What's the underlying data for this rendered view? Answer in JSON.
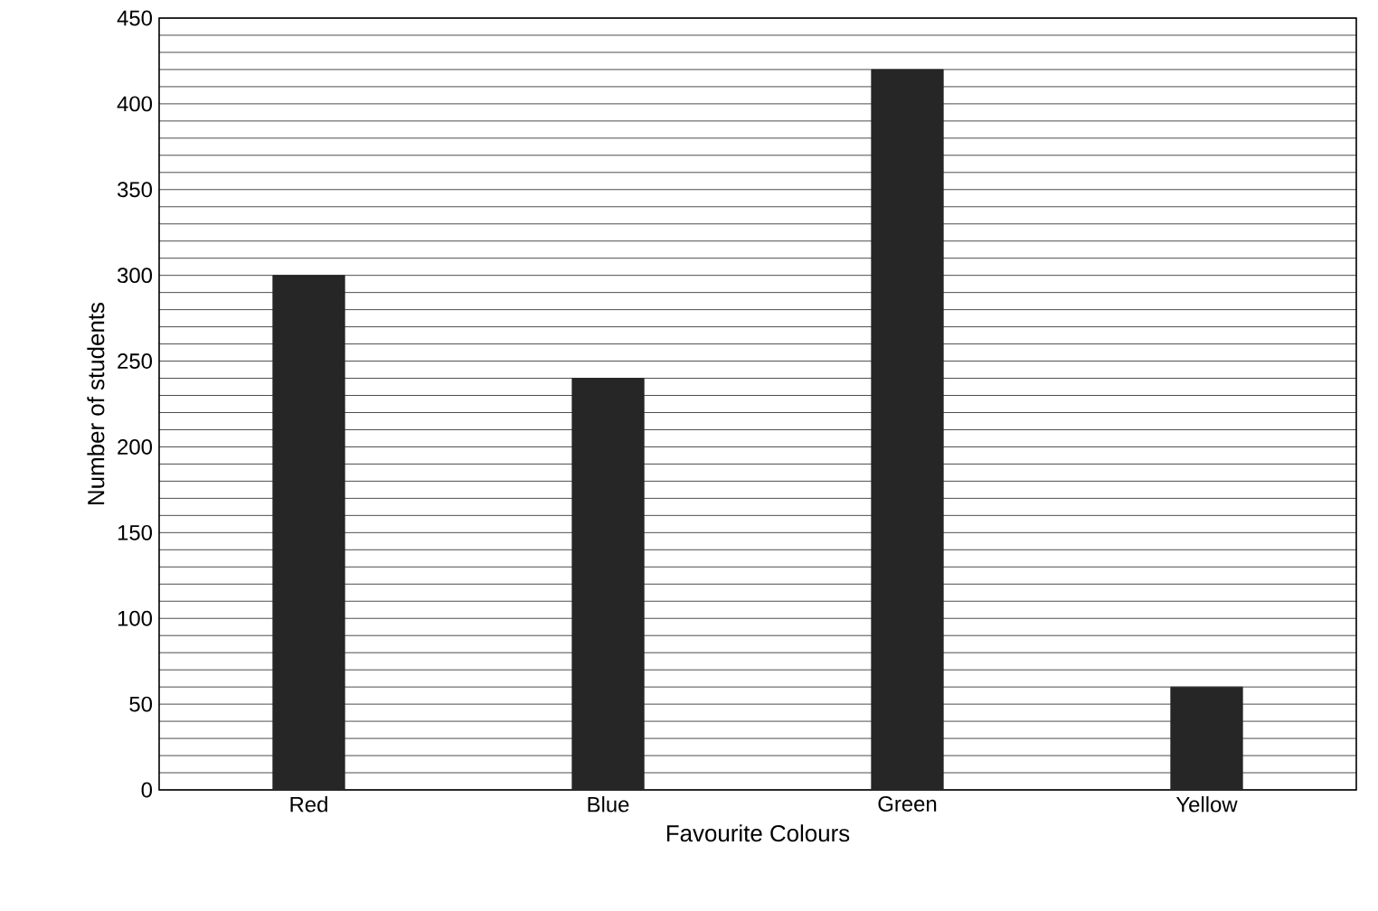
{
  "chart_data": {
    "type": "bar",
    "xlabel": "Favourite Colours",
    "ylabel": "Number of students",
    "categories": [
      "Red",
      "Blue",
      "Green",
      "Yellow"
    ],
    "values": [
      300,
      240,
      420,
      60
    ],
    "color": "#262626",
    "ylim": [
      0,
      450
    ],
    "yticks": [
      0,
      50,
      100,
      150,
      200,
      250,
      300,
      350,
      400,
      450
    ],
    "grid": "y"
  }
}
